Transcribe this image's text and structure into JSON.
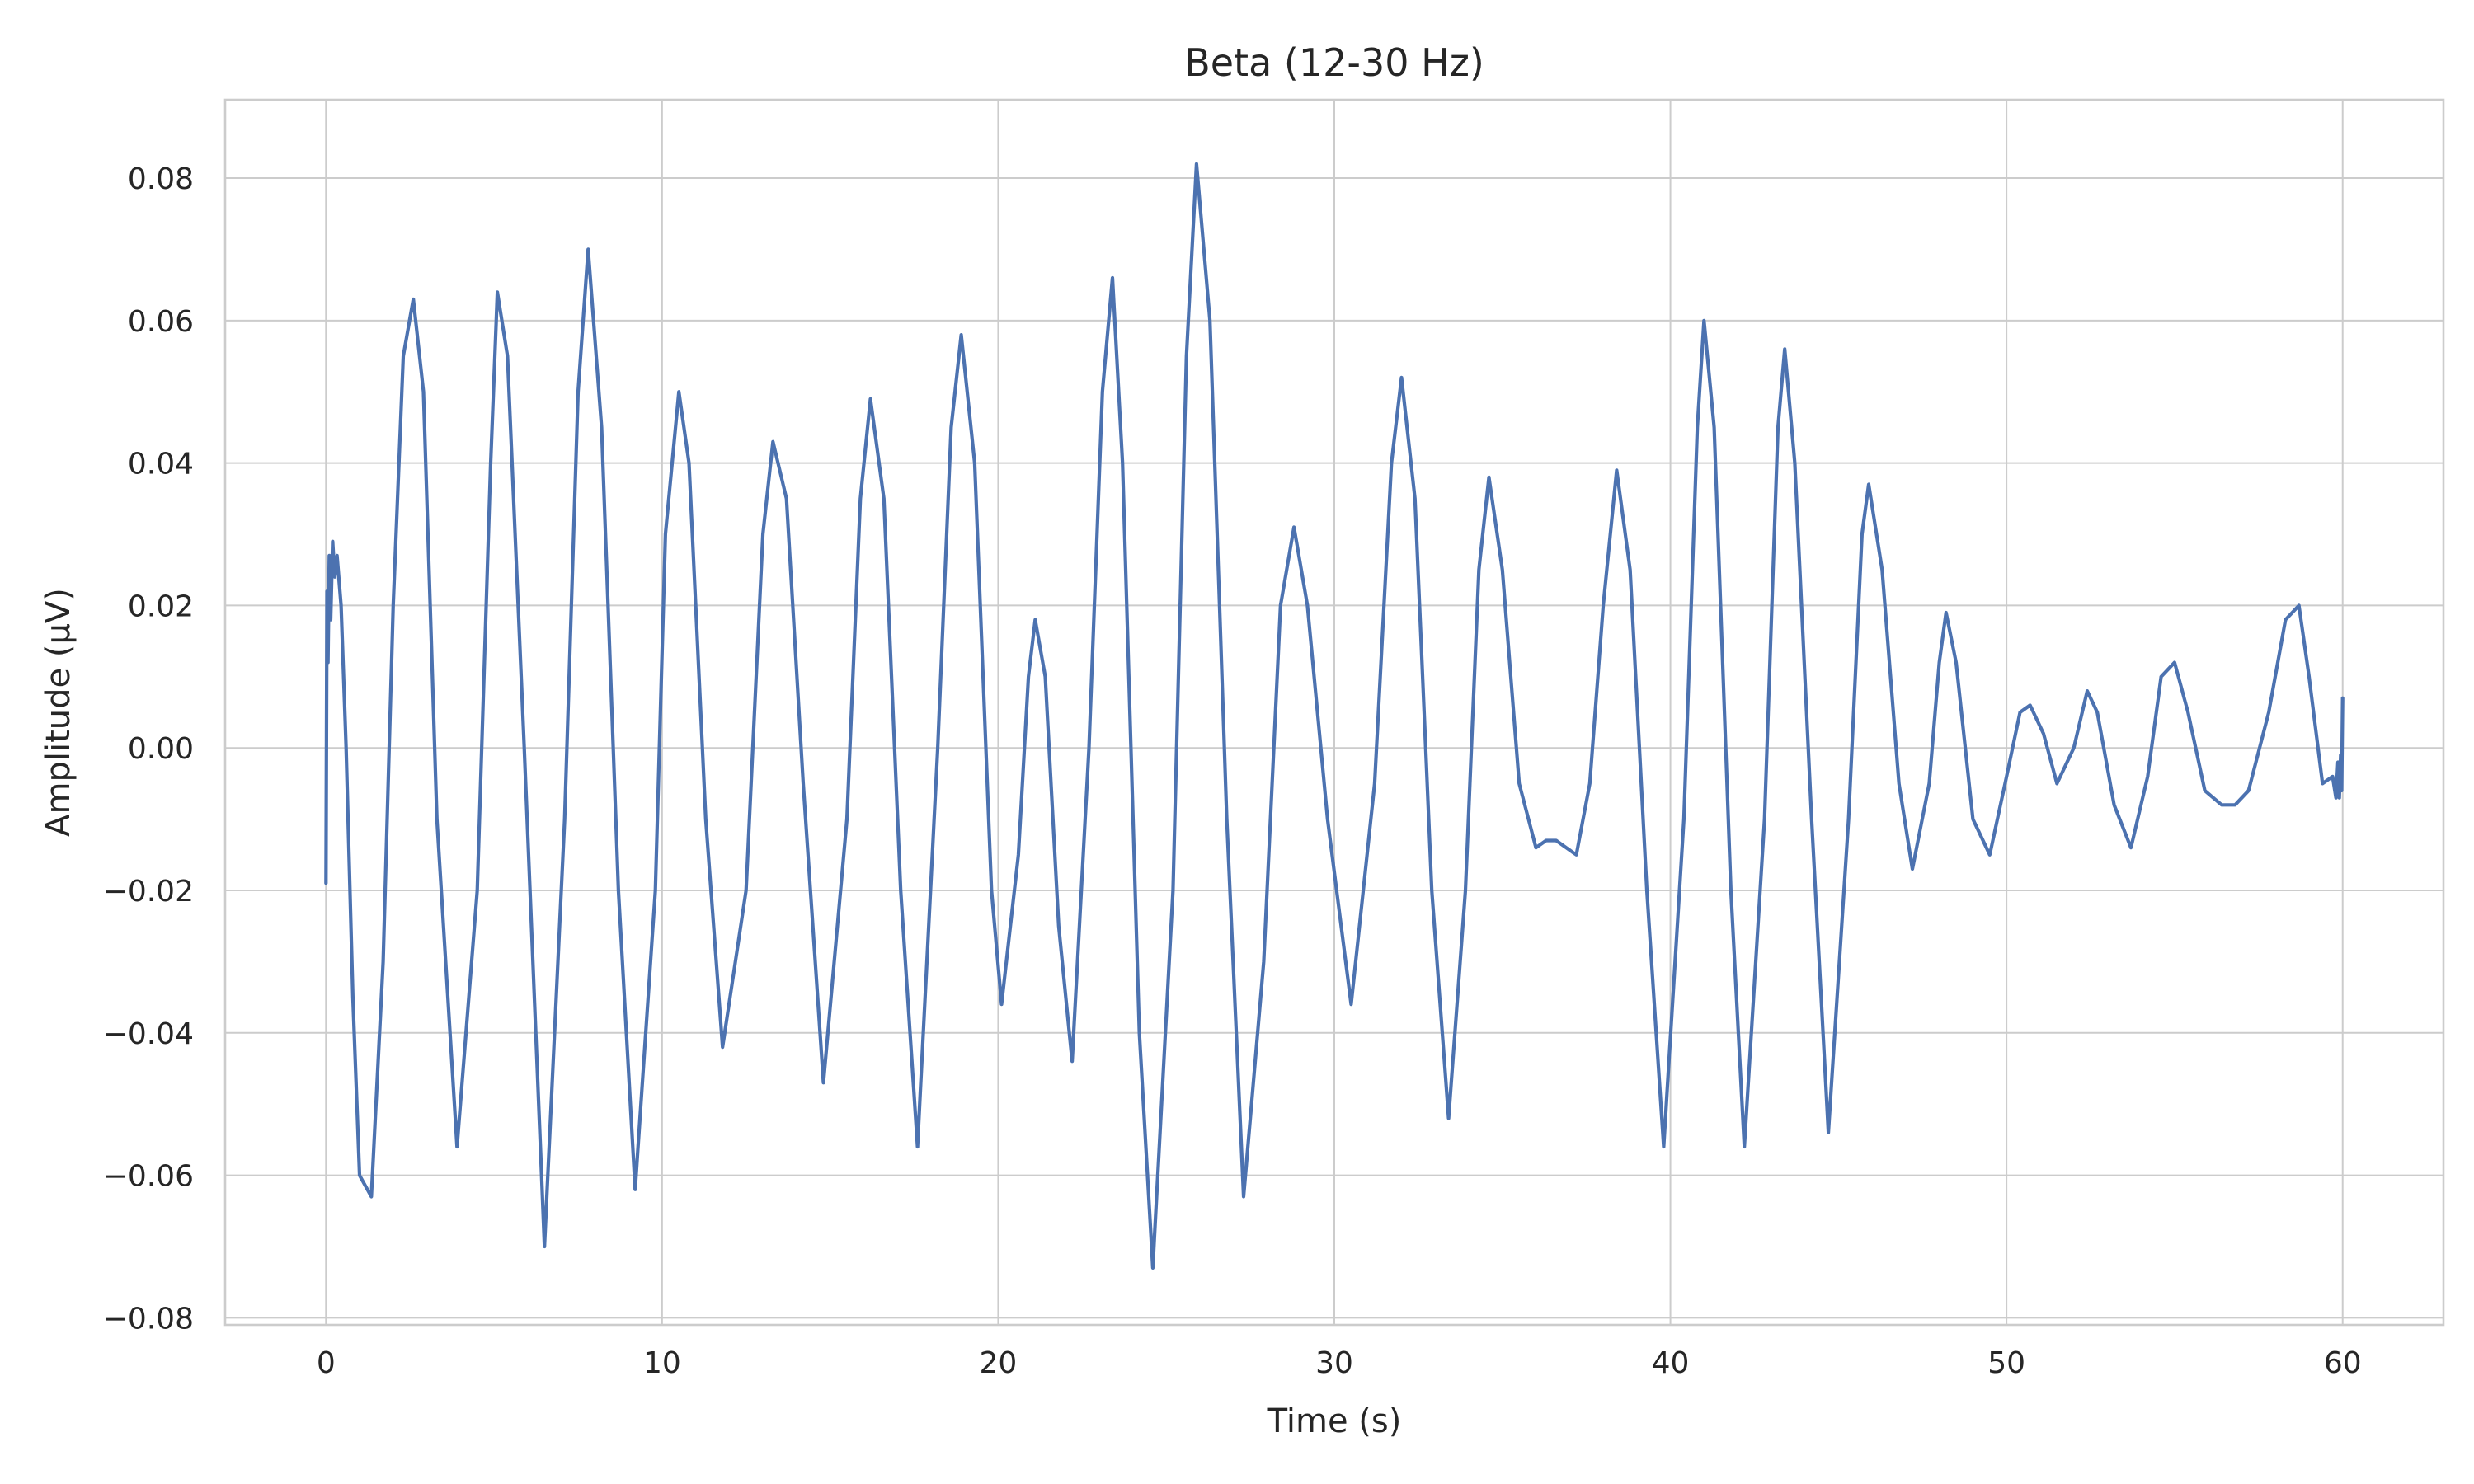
{
  "chart_data": {
    "type": "line",
    "title": "Beta (12-30 Hz)",
    "xlabel": "Time (s)",
    "ylabel": "Amplitude (µV)",
    "xlim": [
      -3,
      63
    ],
    "ylim": [
      -0.081,
      0.091
    ],
    "grid": true,
    "line_color": "#4c72b0",
    "x_ticks": [
      0,
      10,
      20,
      30,
      40,
      50,
      60
    ],
    "x_tick_labels": [
      "0",
      "10",
      "20",
      "30",
      "40",
      "50",
      "60"
    ],
    "y_ticks": [
      -0.08,
      -0.06,
      -0.04,
      -0.02,
      0.0,
      0.02,
      0.04,
      0.06,
      0.08
    ],
    "y_tick_labels": [
      "−0.08",
      "−0.06",
      "−0.04",
      "−0.02",
      "0.00",
      "0.02",
      "0.04",
      "0.06",
      "0.08"
    ],
    "series": [
      {
        "x": [
          0,
          0.03,
          0.06,
          0.1,
          0.14,
          0.2,
          0.26,
          0.33,
          0.45,
          0.6,
          0.8,
          1.0,
          1.35,
          1.7,
          2.0,
          2.3,
          2.6,
          2.9,
          3.3,
          3.9,
          4.5,
          4.9,
          5.1,
          5.4,
          5.9,
          6.5,
          7.1,
          7.5,
          7.8,
          8.2,
          8.7,
          9.2,
          9.8,
          10.1,
          10.5,
          10.8,
          11.3,
          11.8,
          12.5,
          13.0,
          13.3,
          13.7,
          14.2,
          14.8,
          15.5,
          15.9,
          16.2,
          16.6,
          17.1,
          17.6,
          18.2,
          18.6,
          18.9,
          19.3,
          19.8,
          20.1,
          20.6,
          20.9,
          21.1,
          21.4,
          21.8,
          22.2,
          22.7,
          23.1,
          23.4,
          23.7,
          24.2,
          24.6,
          25.2,
          25.6,
          25.9,
          26.3,
          26.8,
          27.3,
          27.9,
          28.4,
          28.8,
          29.2,
          29.8,
          30.5,
          31.2,
          31.7,
          32.0,
          32.4,
          32.9,
          33.4,
          33.9,
          34.3,
          34.6,
          35.0,
          35.5,
          36.0,
          36.3,
          36.6,
          36.9,
          37.2,
          37.6,
          38.0,
          38.4,
          38.8,
          39.3,
          39.8,
          40.4,
          40.8,
          41.0,
          41.3,
          41.8,
          42.2,
          42.8,
          43.2,
          43.4,
          43.7,
          44.2,
          44.7,
          45.3,
          45.7,
          45.9,
          46.3,
          46.8,
          47.2,
          47.7,
          48.0,
          48.2,
          48.5,
          49.0,
          49.5,
          50.0,
          50.4,
          50.7,
          51.1,
          51.5,
          52.0,
          52.4,
          52.7,
          53.2,
          53.7,
          54.2,
          54.6,
          55.0,
          55.4,
          55.9,
          56.4,
          56.8,
          57.2,
          57.8,
          58.3,
          58.7,
          59.0,
          59.4,
          59.7,
          59.8,
          59.86,
          59.9,
          59.94,
          59.97,
          60.0
        ],
        "y": [
          -0.019,
          0.022,
          0.012,
          0.027,
          0.018,
          0.029,
          0.024,
          0.027,
          0.02,
          0.0,
          -0.035,
          -0.06,
          -0.063,
          -0.03,
          0.02,
          0.055,
          0.063,
          0.05,
          -0.01,
          -0.056,
          -0.02,
          0.04,
          0.064,
          0.055,
          0.0,
          -0.07,
          -0.01,
          0.05,
          0.07,
          0.045,
          -0.02,
          -0.062,
          -0.02,
          0.03,
          0.05,
          0.04,
          -0.01,
          -0.042,
          -0.02,
          0.03,
          0.043,
          0.035,
          -0.005,
          -0.047,
          -0.01,
          0.035,
          0.049,
          0.035,
          -0.02,
          -0.056,
          0.0,
          0.045,
          0.058,
          0.04,
          -0.02,
          -0.036,
          -0.015,
          0.01,
          0.018,
          0.01,
          -0.025,
          -0.044,
          0.0,
          0.05,
          0.066,
          0.04,
          -0.04,
          -0.073,
          -0.02,
          0.055,
          0.082,
          0.06,
          -0.01,
          -0.063,
          -0.03,
          0.02,
          0.031,
          0.02,
          -0.01,
          -0.036,
          -0.005,
          0.04,
          0.052,
          0.035,
          -0.02,
          -0.052,
          -0.02,
          0.025,
          0.038,
          0.025,
          -0.005,
          -0.014,
          -0.013,
          -0.013,
          -0.014,
          -0.015,
          -0.005,
          0.02,
          0.039,
          0.025,
          -0.02,
          -0.056,
          -0.01,
          0.045,
          0.06,
          0.045,
          -0.02,
          -0.056,
          -0.01,
          0.045,
          0.056,
          0.04,
          -0.01,
          -0.054,
          -0.01,
          0.03,
          0.037,
          0.025,
          -0.005,
          -0.017,
          -0.005,
          0.012,
          0.019,
          0.012,
          -0.01,
          -0.015,
          -0.004,
          0.005,
          0.006,
          0.002,
          -0.005,
          0.0,
          0.008,
          0.005,
          -0.008,
          -0.014,
          -0.004,
          0.01,
          0.012,
          0.005,
          -0.006,
          -0.008,
          -0.008,
          -0.006,
          0.005,
          0.018,
          0.02,
          0.01,
          -0.005,
          -0.004,
          -0.007,
          -0.002,
          -0.007,
          -0.001,
          -0.006,
          0.007
        ]
      }
    ]
  }
}
